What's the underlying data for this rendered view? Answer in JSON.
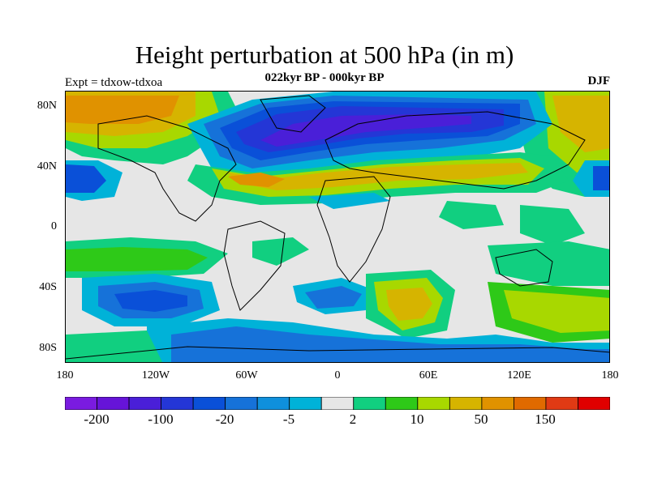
{
  "header": {
    "title": "Height perturbation at 500 hPa (in m)",
    "subtitle": "022kyr BP - 000kyr BP",
    "experiment": "Expt = tdxow-tdxoa",
    "season": "DJF"
  },
  "map": {
    "lat_ticks": [
      "80N",
      "40N",
      "0",
      "40S",
      "80S"
    ],
    "lon_ticks": [
      "180",
      "120W",
      "60W",
      "0",
      "60E",
      "120E",
      "180"
    ],
    "fill_color": "#e6e6e6",
    "features": [
      {
        "label": "north-atlantic-negative",
        "color": "#1e3cd6"
      },
      {
        "label": "north-pacific-positive",
        "color": "#d4a000"
      },
      {
        "label": "southern-ocean-positive",
        "color": "#c8b400"
      }
    ]
  },
  "colorbar": {
    "colors": [
      "#7a1be0",
      "#6614d8",
      "#4a1fd8",
      "#2436d6",
      "#0a50d8",
      "#1672d9",
      "#0f90dc",
      "#00b2d8",
      "#e6e6e6",
      "#11cf80",
      "#2ec918",
      "#a8d800",
      "#d6b400",
      "#e09200",
      "#e06a00",
      "#e03a14",
      "#e00000"
    ],
    "labels": [
      "-200",
      "-100",
      "-20",
      "-5",
      "2",
      "10",
      "50",
      "150"
    ]
  }
}
